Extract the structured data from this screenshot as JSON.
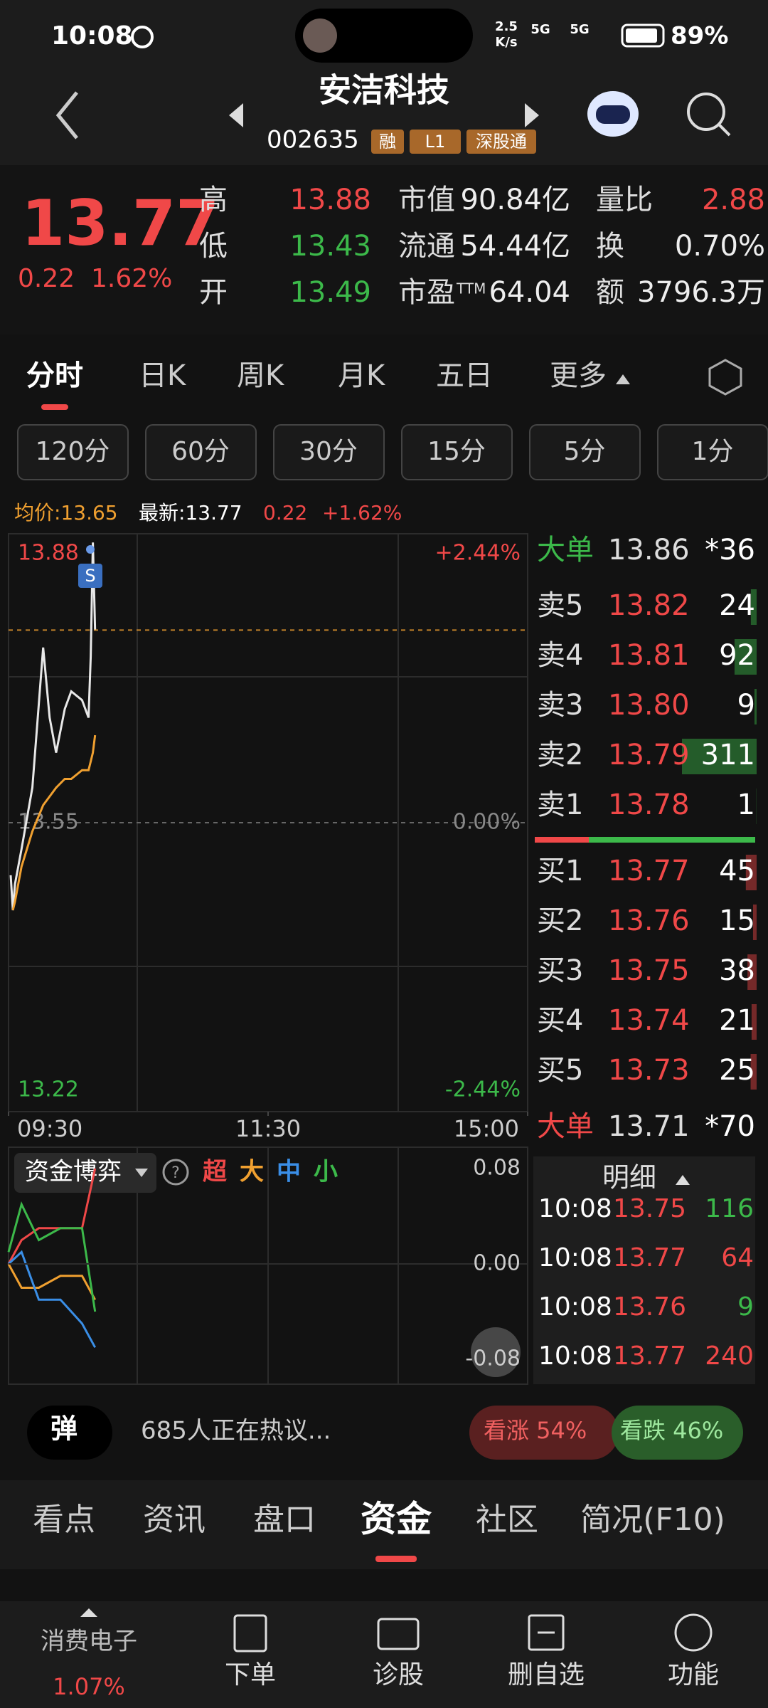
{
  "status_bar": {
    "time": "10:08",
    "speed": "2.5",
    "speed_unit": "K/s",
    "net1": "5G",
    "net2": "5G",
    "battery": "89%"
  },
  "header": {
    "title": "安洁科技",
    "code": "002635",
    "tags": [
      "融",
      "L1",
      "深股通"
    ]
  },
  "quote": {
    "price": "13.77",
    "change": "0.22",
    "change_pct": "1.62%",
    "stats": [
      {
        "label": "高",
        "value": "13.88",
        "color": "#f04848"
      },
      {
        "label": "低",
        "value": "13.43",
        "color": "#3cb94a"
      },
      {
        "label": "开",
        "value": "13.49",
        "color": "#3cb94a"
      },
      {
        "label": "市值",
        "value": "90.84亿",
        "color": "#eeeeee"
      },
      {
        "label": "流通",
        "value": "54.44亿",
        "color": "#eeeeee"
      },
      {
        "label": "市盈",
        "label_sup": "TTM",
        "value": "64.04",
        "color": "#eeeeee"
      },
      {
        "label": "量比",
        "value": "2.88",
        "color": "#f04848"
      },
      {
        "label": "换",
        "value": "0.70%",
        "color": "#eeeeee"
      },
      {
        "label": "额",
        "value": "3796.3万",
        "color": "#eeeeee"
      }
    ]
  },
  "chart_tabs": [
    "分时",
    "日K",
    "周K",
    "月K",
    "五日",
    "更多"
  ],
  "intervals": [
    "120分",
    "60分",
    "30分",
    "15分",
    "5分",
    "1分"
  ],
  "info": {
    "avg": "均价:13.65",
    "latest": "最新:13.77",
    "change": "0.22",
    "change_pct": "+1.62%"
  },
  "price_chart": {
    "type": "line",
    "xlim": [
      0,
      240
    ],
    "xticks": [
      {
        "value": 0,
        "label": "09:30"
      },
      {
        "value": 120,
        "label": "11:30"
      },
      {
        "value": 240,
        "label": "15:00"
      }
    ],
    "ylim": [
      13.22,
      13.88
    ],
    "yticks": [
      13.22,
      13.55,
      13.88
    ],
    "y2lim": [
      -2.44,
      2.44
    ],
    "y2ticks": [
      {
        "value": -2.44,
        "label": "-2.44%"
      },
      {
        "value": 0,
        "label": "0.00%"
      },
      {
        "value": 2.44,
        "label": "+2.44%"
      }
    ],
    "x": [
      1,
      2,
      3,
      6,
      11,
      16,
      19,
      22,
      26,
      29,
      34,
      37,
      38,
      39,
      40
    ],
    "series": [
      {
        "color": "#e8e8e8",
        "values": [
          13.49,
          13.45,
          13.48,
          13.52,
          13.59,
          13.75,
          13.67,
          13.63,
          13.68,
          13.7,
          13.69,
          13.67,
          13.74,
          13.87,
          13.77
        ]
      },
      {
        "color": "#f0a030",
        "values": [
          null,
          13.45,
          13.46,
          13.5,
          13.54,
          13.57,
          13.58,
          13.59,
          13.6,
          13.6,
          13.61,
          13.61,
          13.62,
          13.63,
          13.65
        ]
      }
    ]
  },
  "order_book": {
    "big_top": {
      "label": "大单",
      "price": "13.86",
      "volume": "*36"
    },
    "asks": [
      {
        "label": "卖5",
        "price": "13.82",
        "volume": 24
      },
      {
        "label": "卖4",
        "price": "13.81",
        "volume": 92
      },
      {
        "label": "卖3",
        "price": "13.80",
        "volume": 9
      },
      {
        "label": "卖2",
        "price": "13.79",
        "volume": 311
      },
      {
        "label": "卖1",
        "price": "13.78",
        "volume": 1
      }
    ],
    "bids": [
      {
        "label": "买1",
        "price": "13.77",
        "volume": 45
      },
      {
        "label": "买2",
        "price": "13.76",
        "volume": 15
      },
      {
        "label": "买3",
        "price": "13.75",
        "volume": 38
      },
      {
        "label": "买4",
        "price": "13.74",
        "volume": 21
      },
      {
        "label": "买5",
        "price": "13.73",
        "volume": 25
      }
    ],
    "big_bottom": {
      "label": "大单",
      "price": "13.71",
      "volume": "*70"
    }
  },
  "fund_chart": {
    "type": "line",
    "title": "资金博弈",
    "xlim": [
      0,
      240
    ],
    "ylim": [
      -0.08,
      0.08
    ],
    "yticks": [
      -0.08,
      {
        "value": 0,
        "label": "0.00"
      },
      0.08
    ],
    "x": [
      0,
      6,
      14,
      24,
      34,
      40
    ],
    "series": [
      {
        "name": "超",
        "color": "#f04848",
        "values": [
          0,
          0.02,
          0.03,
          0.03,
          0.03,
          0.08
        ]
      },
      {
        "name": "大",
        "color": "#f0a030",
        "values": [
          0,
          -0.02,
          -0.02,
          -0.01,
          -0.01,
          -0.03
        ]
      },
      {
        "name": "中",
        "color": "#3a8ee6",
        "values": [
          0,
          0.01,
          -0.03,
          -0.03,
          -0.05,
          -0.07
        ]
      },
      {
        "name": "小",
        "color": "#3cb94a",
        "values": [
          0.01,
          0.05,
          0.02,
          0.03,
          0.03,
          -0.04
        ]
      }
    ]
  },
  "trades": {
    "title": "明细",
    "rows": [
      {
        "time": "10:08",
        "price": "13.75",
        "volume": "116",
        "color": "#3cb94a"
      },
      {
        "time": "10:08",
        "price": "13.77",
        "volume": "64",
        "color": "#f04848"
      },
      {
        "time": "10:08",
        "price": "13.76",
        "volume": "9",
        "color": "#3cb94a"
      },
      {
        "time": "10:08",
        "price": "13.77",
        "volume": "240",
        "color": "#f04848"
      }
    ]
  },
  "sentiment": {
    "button": "弹",
    "text": "685人正在热议...",
    "bull": "看涨 54%",
    "bear": "看跌 46%"
  },
  "bottom_tabs": [
    "看点",
    "资讯",
    "盘口",
    "资金",
    "社区",
    "简况(F10)"
  ],
  "bottom_nav": {
    "sector": "消费电子",
    "sector_change": "1.07%",
    "items": [
      "下单",
      "诊股",
      "删自选",
      "功能"
    ]
  }
}
